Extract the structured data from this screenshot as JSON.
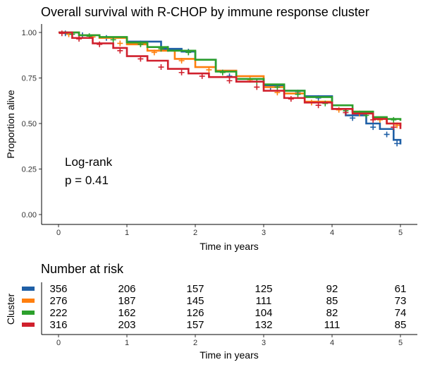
{
  "chart_data": [
    {
      "type": "line",
      "subtype": "kaplan-meier",
      "title": "Overall survival with R-CHOP by immune response cluster",
      "xlabel": "Time in years",
      "ylabel": "Proportion alive",
      "xlim": [
        0,
        5
      ],
      "ylim": [
        0,
        1
      ],
      "x_ticks": [
        "0",
        "1",
        "2",
        "3",
        "4",
        "5"
      ],
      "y_ticks": [
        "0.00",
        "0.25",
        "0.50",
        "0.75",
        "1.00"
      ],
      "annotation": [
        "Log-rank",
        "p = 0.41"
      ],
      "series": [
        {
          "color": "#1f5fa6",
          "x": [
            0,
            0.3,
            0.6,
            1.0,
            1.5,
            1.8,
            2.0,
            2.3,
            2.6,
            3.0,
            3.3,
            3.6,
            4.0,
            4.2,
            4.5,
            4.7,
            4.9,
            5.0
          ],
          "y": [
            1.0,
            0.985,
            0.97,
            0.95,
            0.91,
            0.895,
            0.85,
            0.79,
            0.745,
            0.71,
            0.68,
            0.65,
            0.58,
            0.545,
            0.5,
            0.47,
            0.41,
            0.385
          ],
          "censor_x": [
            0.1,
            0.35,
            0.7,
            1.2,
            1.6,
            1.9,
            2.5,
            3.1,
            3.5,
            3.8,
            4.3,
            4.6,
            4.8,
            4.95
          ],
          "censor_y": [
            0.995,
            0.985,
            0.97,
            0.94,
            0.91,
            0.895,
            0.76,
            0.7,
            0.67,
            0.64,
            0.53,
            0.48,
            0.44,
            0.39
          ]
        },
        {
          "color": "#ff7f0e",
          "x": [
            0,
            0.3,
            0.6,
            1.0,
            1.3,
            1.7,
            2.0,
            2.3,
            2.6,
            3.0,
            3.3,
            3.6,
            4.0,
            4.3,
            4.6,
            4.8,
            5.0
          ],
          "y": [
            1.0,
            0.985,
            0.97,
            0.935,
            0.9,
            0.855,
            0.81,
            0.79,
            0.76,
            0.7,
            0.665,
            0.62,
            0.58,
            0.565,
            0.53,
            0.5,
            0.485
          ],
          "censor_x": [
            0.15,
            0.5,
            0.9,
            1.4,
            1.8,
            2.2,
            2.8,
            3.2,
            3.7,
            4.1,
            4.4,
            4.7,
            4.95
          ],
          "censor_y": [
            0.99,
            0.975,
            0.94,
            0.89,
            0.845,
            0.795,
            0.74,
            0.67,
            0.615,
            0.575,
            0.555,
            0.52,
            0.49
          ]
        },
        {
          "color": "#2ca02c",
          "x": [
            0,
            0.3,
            0.6,
            1.0,
            1.3,
            1.6,
            2.0,
            2.3,
            2.6,
            3.0,
            3.3,
            3.6,
            4.0,
            4.3,
            4.6,
            4.8,
            5.0
          ],
          "y": [
            1.0,
            0.985,
            0.975,
            0.945,
            0.92,
            0.9,
            0.85,
            0.785,
            0.745,
            0.715,
            0.68,
            0.645,
            0.6,
            0.565,
            0.535,
            0.525,
            0.515
          ],
          "censor_x": [
            0.2,
            0.45,
            0.8,
            1.2,
            1.5,
            1.9,
            2.4,
            2.9,
            3.2,
            3.5,
            3.9,
            4.2,
            4.5,
            4.9
          ],
          "censor_y": [
            0.99,
            0.98,
            0.96,
            0.935,
            0.91,
            0.89,
            0.78,
            0.73,
            0.7,
            0.66,
            0.61,
            0.57,
            0.545,
            0.52
          ]
        },
        {
          "color": "#d0202d",
          "x": [
            0,
            0.2,
            0.5,
            0.8,
            1.0,
            1.3,
            1.6,
            1.9,
            2.2,
            2.6,
            3.0,
            3.3,
            3.6,
            4.0,
            4.3,
            4.6,
            4.8,
            5.0
          ],
          "y": [
            1.0,
            0.97,
            0.94,
            0.915,
            0.87,
            0.845,
            0.8,
            0.775,
            0.755,
            0.73,
            0.68,
            0.64,
            0.615,
            0.58,
            0.555,
            0.525,
            0.5,
            0.47
          ],
          "censor_x": [
            0.05,
            0.3,
            0.6,
            0.9,
            1.2,
            1.5,
            1.8,
            2.1,
            2.5,
            2.9,
            3.4,
            3.8,
            4.2,
            4.6,
            4.9
          ],
          "censor_y": [
            0.995,
            0.965,
            0.935,
            0.9,
            0.855,
            0.81,
            0.78,
            0.76,
            0.735,
            0.7,
            0.635,
            0.6,
            0.56,
            0.52,
            0.48
          ]
        }
      ]
    },
    {
      "type": "table",
      "title": "Number at risk",
      "xlabel": "Time in years",
      "ylabel": "Cluster",
      "x_ticks": [
        "0",
        "1",
        "2",
        "3",
        "4",
        "5"
      ],
      "rows": [
        {
          "color": "#1f5fa6",
          "values": [
            "356",
            "206",
            "157",
            "125",
            "92",
            "61"
          ]
        },
        {
          "color": "#ff7f0e",
          "values": [
            "276",
            "187",
            "145",
            "111",
            "85",
            "73"
          ]
        },
        {
          "color": "#2ca02c",
          "values": [
            "222",
            "162",
            "126",
            "104",
            "82",
            "74"
          ]
        },
        {
          "color": "#d0202d",
          "values": [
            "316",
            "203",
            "157",
            "132",
            "111",
            "85"
          ]
        }
      ]
    }
  ]
}
